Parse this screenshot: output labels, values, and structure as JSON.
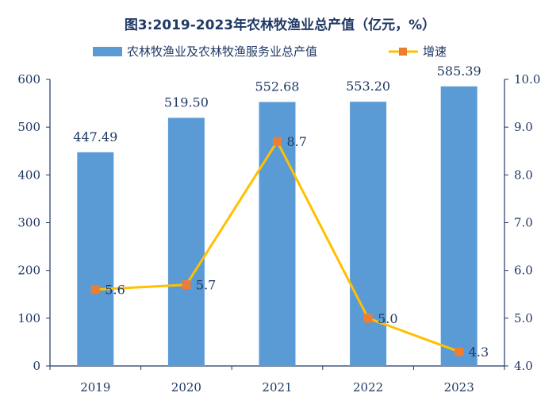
{
  "chart_data": {
    "type": "bar",
    "title": "图3:2019-2023年农林牧渔业总产值（亿元，%）",
    "categories": [
      "2019",
      "2020",
      "2021",
      "2022",
      "2023"
    ],
    "series": [
      {
        "name": "农林牧渔业及农林牧渔服务业总产值",
        "type": "bar",
        "axis": "left",
        "values": [
          447.49,
          519.5,
          552.68,
          553.2,
          585.39
        ],
        "labels": [
          "447.49",
          "519.50",
          "552.68",
          "553.20",
          "585.39"
        ],
        "color": "#5b9bd5"
      },
      {
        "name": "增速",
        "type": "line",
        "axis": "right",
        "values": [
          5.6,
          5.7,
          8.7,
          5.0,
          4.3
        ],
        "labels": [
          "5.6",
          "5.7",
          "8.7",
          "5.0",
          "4.3"
        ],
        "color": "#ffc000",
        "marker_color": "#ed7d31"
      }
    ],
    "y_left": {
      "min": 0,
      "max": 600,
      "ticks": [
        "0",
        "100",
        "200",
        "300",
        "400",
        "500",
        "600"
      ]
    },
    "y_right": {
      "min": 4.0,
      "max": 10.0,
      "ticks": [
        "4.0",
        "5.0",
        "6.0",
        "7.0",
        "8.0",
        "9.0",
        "10.0"
      ]
    },
    "grid": false,
    "legend_position": "top-center",
    "axis_color": "#1f3864"
  }
}
